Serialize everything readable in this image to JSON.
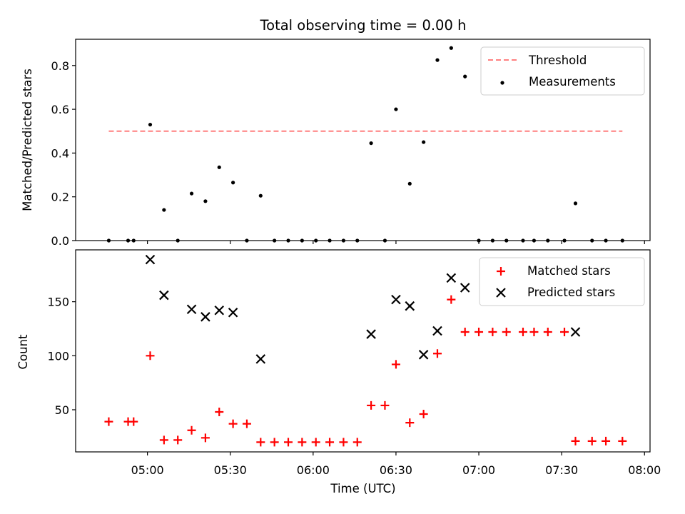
{
  "chart_data": {
    "title": "Total observing time = 0.00 h",
    "x_ticks": [
      "05:00",
      "05:30",
      "06:00",
      "06:30",
      "07:00",
      "07:30",
      "08:00"
    ],
    "xlabel": "Time (UTC)",
    "xlim": [
      "04:34",
      "08:02"
    ],
    "top": {
      "type": "scatter",
      "ylabel": "Matched/Predicted stars",
      "ylim": [
        0,
        0.92
      ],
      "y_ticks": [
        "0.0",
        "0.2",
        "0.4",
        "0.6",
        "0.8"
      ],
      "legend": {
        "placement": "top-right",
        "entries": [
          "Threshold",
          "Measurements"
        ]
      },
      "threshold": {
        "name": "Threshold",
        "value": 0.5,
        "x_start": "04:46",
        "x_end": "07:52",
        "color": "#ff7f7f"
      },
      "measurements": {
        "name": "Measurements",
        "color": "#000000",
        "points": [
          [
            "04:46",
            0
          ],
          [
            "04:53",
            0
          ],
          [
            "04:55",
            0
          ],
          [
            "05:01",
            0.53
          ],
          [
            "05:06",
            0.14
          ],
          [
            "05:11",
            0
          ],
          [
            "05:16",
            0.215
          ],
          [
            "05:21",
            0.18
          ],
          [
            "05:26",
            0.335
          ],
          [
            "05:31",
            0.265
          ],
          [
            "05:36",
            0
          ],
          [
            "05:41",
            0.205
          ],
          [
            "05:46",
            0
          ],
          [
            "05:51",
            0
          ],
          [
            "05:56",
            0
          ],
          [
            "06:01",
            0
          ],
          [
            "06:06",
            0
          ],
          [
            "06:11",
            0
          ],
          [
            "06:16",
            0
          ],
          [
            "06:21",
            0.445
          ],
          [
            "06:26",
            0
          ],
          [
            "06:30",
            0.6
          ],
          [
            "06:35",
            0.26
          ],
          [
            "06:40",
            0.45
          ],
          [
            "06:45",
            0.825
          ],
          [
            "06:50",
            0.88
          ],
          [
            "06:55",
            0.75
          ],
          [
            "07:00",
            0
          ],
          [
            "07:05",
            0
          ],
          [
            "07:10",
            0
          ],
          [
            "07:16",
            0
          ],
          [
            "07:20",
            0
          ],
          [
            "07:25",
            0
          ],
          [
            "07:31",
            0
          ],
          [
            "07:35",
            0.17
          ],
          [
            "07:41",
            0
          ],
          [
            "07:46",
            0
          ],
          [
            "07:52",
            0
          ]
        ]
      }
    },
    "bottom": {
      "type": "scatter",
      "ylabel": "Count",
      "ylim": [
        11,
        198
      ],
      "y_ticks": [
        "50",
        "100",
        "150"
      ],
      "legend": {
        "placement": "top-right",
        "entries": [
          "Matched stars",
          "Predicted stars"
        ]
      },
      "matched": {
        "name": "Matched stars",
        "color": "#ff0000",
        "points": [
          [
            "04:46",
            39
          ],
          [
            "04:53",
            39
          ],
          [
            "04:55",
            39
          ],
          [
            "05:01",
            100
          ],
          [
            "05:06",
            22
          ],
          [
            "05:11",
            22
          ],
          [
            "05:16",
            31
          ],
          [
            "05:21",
            24
          ],
          [
            "05:26",
            48
          ],
          [
            "05:31",
            37
          ],
          [
            "05:36",
            37
          ],
          [
            "05:41",
            20
          ],
          [
            "05:46",
            20
          ],
          [
            "05:51",
            20
          ],
          [
            "05:56",
            20
          ],
          [
            "06:01",
            20
          ],
          [
            "06:06",
            20
          ],
          [
            "06:11",
            20
          ],
          [
            "06:16",
            20
          ],
          [
            "06:21",
            54
          ],
          [
            "06:26",
            54
          ],
          [
            "06:30",
            92
          ],
          [
            "06:35",
            38
          ],
          [
            "06:40",
            46
          ],
          [
            "06:45",
            102
          ],
          [
            "06:50",
            152
          ],
          [
            "06:55",
            122
          ],
          [
            "07:00",
            122
          ],
          [
            "07:05",
            122
          ],
          [
            "07:10",
            122
          ],
          [
            "07:16",
            122
          ],
          [
            "07:20",
            122
          ],
          [
            "07:25",
            122
          ],
          [
            "07:31",
            122
          ],
          [
            "07:35",
            21
          ],
          [
            "07:41",
            21
          ],
          [
            "07:46",
            21
          ],
          [
            "07:52",
            21
          ]
        ]
      },
      "predicted": {
        "name": "Predicted stars",
        "color": "#000000",
        "points": [
          [
            "05:01",
            189
          ],
          [
            "05:06",
            156
          ],
          [
            "05:16",
            143
          ],
          [
            "05:21",
            136
          ],
          [
            "05:26",
            142
          ],
          [
            "05:31",
            140
          ],
          [
            "05:41",
            97
          ],
          [
            "06:21",
            120
          ],
          [
            "06:30",
            152
          ],
          [
            "06:35",
            146
          ],
          [
            "06:40",
            101
          ],
          [
            "06:45",
            123
          ],
          [
            "06:50",
            172
          ],
          [
            "06:55",
            163
          ],
          [
            "07:35",
            122
          ]
        ]
      }
    }
  }
}
